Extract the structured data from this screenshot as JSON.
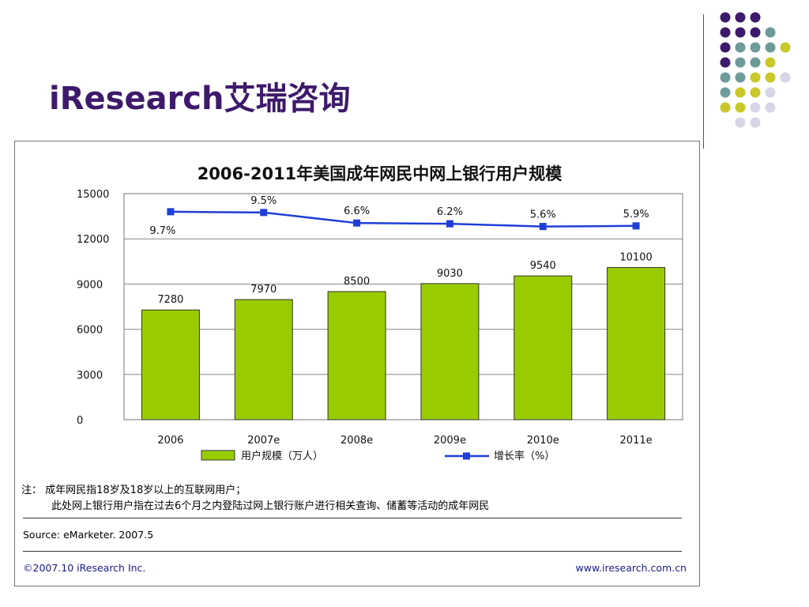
{
  "slide": {
    "title": "iResearch艾瑞咨询"
  },
  "decoration": {
    "dot_colors": [
      "#3d1a6b",
      "#6e9a9a",
      "#c8c82a",
      "#d6d6e6"
    ]
  },
  "chart_data": {
    "type": "bar",
    "title": "2006-2011年美国成年网民中网上银行用户规模",
    "categories": [
      "2006",
      "2007e",
      "2008e",
      "2009e",
      "2010e",
      "2011e"
    ],
    "series": [
      {
        "name": "用户规模（万人）",
        "type": "bar",
        "color": "#99cc00",
        "values": [
          7280,
          7970,
          8500,
          9030,
          9540,
          10100
        ],
        "labels": [
          "7280",
          "7970",
          "8500",
          "9030",
          "9540",
          "10100"
        ]
      },
      {
        "name": "增长率（%）",
        "type": "line",
        "color": "#1f3fd6",
        "values": [
          13800,
          13750,
          13050,
          13000,
          12820,
          12860
        ],
        "labels": [
          "9.7%",
          "9.5%",
          "6.6%",
          "6.2%",
          "5.6%",
          "5.9%"
        ]
      }
    ],
    "ylim": [
      0,
      15000
    ],
    "yticks": [
      "0",
      "3000",
      "6000",
      "9000",
      "12000",
      "15000"
    ],
    "grid": true,
    "legend": "bottom"
  },
  "notes": {
    "line1": "注： 成年网民指18岁及18岁以上的互联网用户；",
    "line2": "此处网上银行用户指在过去6个月之内登陆过网上银行账户进行相关查询、储蓄等活动的成年网民"
  },
  "source": "Source: eMarketer. 2007.5",
  "footer": {
    "copyright": "©2007.10 iResearch Inc.",
    "url": "www.iresearch.com.cn"
  }
}
